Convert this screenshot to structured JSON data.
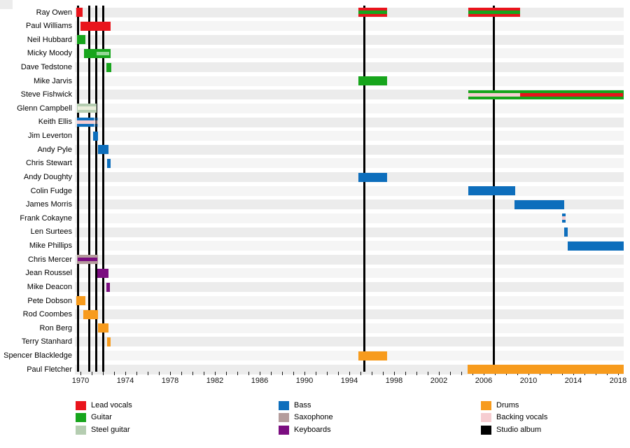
{
  "chart_data": {
    "type": "bar",
    "subtype": "gantt-membership-timeline",
    "title": "",
    "xlabel": "",
    "ylabel": "",
    "grid": "alternating-row-tracks",
    "x_axis": {
      "start": 1969.5,
      "end": 2018.55,
      "minor_tick_interval": 1,
      "major_labels": [
        "1970",
        "1974",
        "1978",
        "1982",
        "1986",
        "1990",
        "1994",
        "1998",
        "2002",
        "2006",
        "2010",
        "2014",
        "2018"
      ],
      "major_label_years": [
        1970,
        1974,
        1978,
        1982,
        1986,
        1990,
        1994,
        1998,
        2002,
        2006,
        2010,
        2014,
        2018
      ]
    },
    "album_years": [
      1969.8,
      1970.77,
      1971.41,
      1972.06,
      1995.34,
      2006.91
    ],
    "members": [
      {
        "name": "Ray Owen",
        "segments": [
          {
            "from": 1969.62,
            "to": 1970.16,
            "role": "lead_vocals"
          },
          {
            "from": 1994.81,
            "to": 1997.39,
            "role": "lead_vocals",
            "stripes": [
              {
                "role": "guitar"
              }
            ]
          },
          {
            "from": 2004.63,
            "to": 2009.28,
            "role": "lead_vocals",
            "stripes": [
              {
                "role": "guitar"
              }
            ]
          }
        ]
      },
      {
        "name": "Paul Williams",
        "segments": [
          {
            "from": 1969.99,
            "to": 1972.71,
            "role": "lead_vocals"
          }
        ]
      },
      {
        "name": "Neil Hubbard",
        "segments": [
          {
            "from": 1969.69,
            "to": 1970.41,
            "role": "guitar"
          }
        ]
      },
      {
        "name": "Micky Moody",
        "segments": [
          {
            "from": 1970.31,
            "to": 1972.69,
            "role": "guitar",
            "stripes": [
              {
                "from": 1971.44,
                "to": 1972.56,
                "role": "guitar_light"
              }
            ]
          }
        ]
      },
      {
        "name": "Dave Tedstone",
        "segments": [
          {
            "from": 1972.31,
            "to": 1972.72,
            "role": "guitar"
          }
        ]
      },
      {
        "name": "Mike Jarvis",
        "segments": [
          {
            "from": 1994.81,
            "to": 1997.38,
            "role": "guitar"
          }
        ]
      },
      {
        "name": "Steve Fishwick",
        "segments": [
          {
            "from": 2004.63,
            "to": 2018.52,
            "role": "guitar",
            "stripes": [
              {
                "from": 2004.63,
                "to": 2009.28,
                "role": "backing_vocals"
              },
              {
                "from": 2009.28,
                "to": 2018.42,
                "role": "lead_vocals"
              }
            ]
          }
        ]
      },
      {
        "name": "Glenn Campbell",
        "segments": [
          {
            "from": 1969.69,
            "to": 1971.44,
            "role": "steel_guitar",
            "stripes": [
              {
                "from": 1969.75,
                "to": 1971.38,
                "role": "steel_guitar_light"
              }
            ]
          }
        ]
      },
      {
        "name": "Keith Ellis",
        "segments": [
          {
            "from": 1969.66,
            "to": 1971.19,
            "role": "bass",
            "stripes": [
              {
                "role": "backing_vocals"
              }
            ]
          },
          {
            "from": 1971.19,
            "to": 1971.56,
            "role": "bass",
            "faded": true,
            "stripes": [
              {
                "role": "backing_vocals"
              }
            ]
          }
        ]
      },
      {
        "name": "Jim Leverton",
        "segments": [
          {
            "from": 1971.13,
            "to": 1971.56,
            "role": "bass"
          }
        ]
      },
      {
        "name": "Andy Pyle",
        "segments": [
          {
            "from": 1971.56,
            "to": 1972.53,
            "role": "bass"
          }
        ]
      },
      {
        "name": "Chris Stewart",
        "segments": [
          {
            "from": 1972.38,
            "to": 1972.66,
            "role": "bass"
          }
        ]
      },
      {
        "name": "Andy Doughty",
        "segments": [
          {
            "from": 1994.81,
            "to": 1997.38,
            "role": "bass"
          }
        ]
      },
      {
        "name": "Colin Fudge",
        "segments": [
          {
            "from": 2004.63,
            "to": 2008.81,
            "role": "bass"
          }
        ]
      },
      {
        "name": "James Morris",
        "segments": [
          {
            "from": 2008.75,
            "to": 2013.19,
            "role": "bass"
          }
        ]
      },
      {
        "name": "Frank Cokayne",
        "segments": [
          {
            "from": 2013.0,
            "to": 2013.31,
            "role": "bass",
            "stripes": [
              {
                "role": "backing_vocals"
              }
            ]
          }
        ]
      },
      {
        "name": "Len Surtees",
        "segments": [
          {
            "from": 2013.16,
            "to": 2013.5,
            "role": "bass"
          }
        ]
      },
      {
        "name": "Mike Phillips",
        "segments": [
          {
            "from": 2013.5,
            "to": 2018.52,
            "role": "bass"
          }
        ]
      },
      {
        "name": "Chris Mercer",
        "segments": [
          {
            "from": 1969.69,
            "to": 1971.56,
            "role": "saxophone",
            "stripes": [
              {
                "from": 1969.75,
                "to": 1971.5,
                "role": "keyboards"
              }
            ]
          }
        ]
      },
      {
        "name": "Jean Roussel",
        "segments": [
          {
            "from": 1971.53,
            "to": 1972.5,
            "role": "keyboards"
          }
        ]
      },
      {
        "name": "Mike Deacon",
        "segments": [
          {
            "from": 1972.34,
            "to": 1972.63,
            "role": "keyboards"
          }
        ]
      },
      {
        "name": "Pete Dobson",
        "segments": [
          {
            "from": 1969.63,
            "to": 1970.41,
            "role": "drums"
          }
        ]
      },
      {
        "name": "Rod Coombes",
        "segments": [
          {
            "from": 1970.25,
            "to": 1971.59,
            "role": "drums"
          }
        ]
      },
      {
        "name": "Ron Berg",
        "segments": [
          {
            "from": 1971.56,
            "to": 1972.53,
            "role": "drums"
          }
        ]
      },
      {
        "name": "Terry Stanhard",
        "segments": [
          {
            "from": 1972.38,
            "to": 1972.66,
            "role": "drums"
          }
        ]
      },
      {
        "name": "Spencer Blackledge",
        "segments": [
          {
            "from": 1994.81,
            "to": 1997.38,
            "role": "drums"
          }
        ]
      },
      {
        "name": "Paul Fletcher",
        "segments": [
          {
            "from": 2004.56,
            "to": 2018.52,
            "role": "drums"
          }
        ]
      }
    ],
    "legend_position": "bottom",
    "legend_columns": [
      [
        {
          "label": "Lead vocals",
          "role": "lead_vocals"
        },
        {
          "label": "Guitar",
          "role": "guitar"
        },
        {
          "label": "Steel guitar",
          "role": "steel_guitar"
        }
      ],
      [
        {
          "label": "Bass",
          "role": "bass"
        },
        {
          "label": "Saxophone",
          "role": "saxophone"
        },
        {
          "label": "Keyboards",
          "role": "keyboards"
        }
      ],
      [
        {
          "label": "Drums",
          "role": "drums"
        },
        {
          "label": "Backing vocals",
          "role": "backing_vocals"
        },
        {
          "label": "Studio album",
          "role": "studio_album"
        }
      ]
    ]
  },
  "colors": {
    "lead_vocals": "#e9141c",
    "guitar": "#17a51c",
    "guitar_light": "#93d795",
    "steel_guitar": "#b5cdb1",
    "steel_guitar_light": "#eaeedb",
    "bass": "#0d6ebc",
    "saxophone": "#b49c9c",
    "keyboards": "#7b0d80",
    "drums": "#f79b1d",
    "backing_vocals": "#f6cdd1",
    "studio_album": "#000000",
    "track_even": "#ececec",
    "track_odd": "#f5f5f5"
  }
}
